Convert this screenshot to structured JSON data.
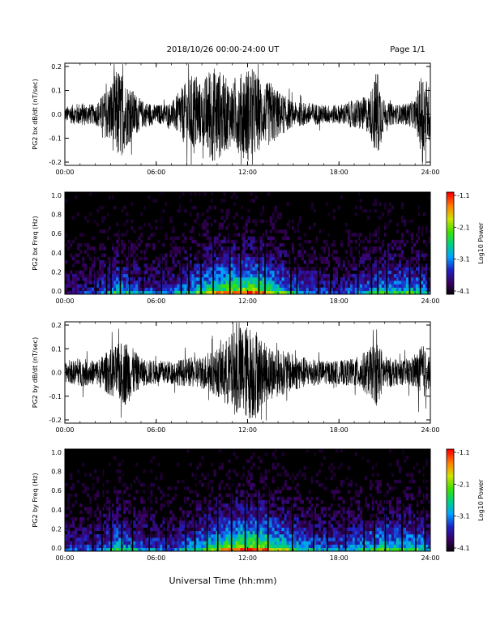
{
  "header": {
    "title": "2018/10/26  00:00-24:00 UT",
    "page": "Page 1/1"
  },
  "footer": {
    "xlabel": "Universal Time (hh:mm)"
  },
  "colors": {
    "trace": "#000000",
    "background": "#ffffff"
  },
  "colorbar": {
    "label": "Log10 Power",
    "ticks": [
      "-1.1",
      "-2.1",
      "-3.1",
      "-4.1"
    ],
    "range": [
      -4.1,
      -1.1
    ],
    "colormap": [
      "#000000",
      "#3a0060",
      "#2020c0",
      "#00a0ff",
      "#00d080",
      "#40e000",
      "#d0e000",
      "#ff8000",
      "#ff0000"
    ]
  },
  "chart_data": [
    {
      "type": "line",
      "name": "bx_waveform",
      "ylabel": "PG2 bx dB/dt (nT/sec)",
      "ylim": [
        -0.2,
        0.2
      ],
      "yticks": [
        "0.2",
        "0.1",
        "0.0",
        "-0.1",
        "-0.2"
      ],
      "xlim_hours": [
        0,
        24
      ],
      "xticks": [
        "00:00",
        "06:00",
        "12:00",
        "18:00",
        "24:00"
      ],
      "envelope": {
        "hours": [
          0,
          1,
          2,
          3,
          3.5,
          4,
          5,
          6,
          7,
          8,
          8.5,
          9,
          9.5,
          10,
          10.5,
          11,
          11.5,
          12,
          12.5,
          13,
          13.5,
          14,
          15,
          16,
          17,
          18,
          19,
          20,
          20.5,
          21,
          22,
          23,
          23.5,
          24
        ],
        "amplitude": [
          0.03,
          0.05,
          0.04,
          0.13,
          0.2,
          0.14,
          0.06,
          0.04,
          0.05,
          0.14,
          0.18,
          0.12,
          0.2,
          0.2,
          0.16,
          0.13,
          0.17,
          0.2,
          0.19,
          0.12,
          0.14,
          0.1,
          0.05,
          0.05,
          0.04,
          0.04,
          0.06,
          0.08,
          0.2,
          0.05,
          0.04,
          0.06,
          0.2,
          0.1
        ]
      }
    },
    {
      "type": "heatmap",
      "name": "bx_spectrogram",
      "ylabel": "PG2 bx Freq (Hz)",
      "ylim": [
        0.0,
        1.0
      ],
      "yticks": [
        "1.0",
        "0.8",
        "0.6",
        "0.4",
        "0.2",
        "0.0"
      ],
      "xlim_hours": [
        0,
        24
      ],
      "xticks": [
        "00:00",
        "06:00",
        "12:00",
        "18:00",
        "24:00"
      ],
      "zlim": [
        -4.1,
        -1.1
      ],
      "activity": {
        "hours": [
          0,
          2,
          3.5,
          5,
          7,
          8.5,
          10,
          11,
          12,
          13,
          14,
          16,
          18,
          20,
          21,
          23.5,
          24
        ],
        "level": [
          0.25,
          0.3,
          0.55,
          0.35,
          0.35,
          0.55,
          0.75,
          0.8,
          0.85,
          0.8,
          0.6,
          0.35,
          0.3,
          0.45,
          0.55,
          0.5,
          0.3
        ]
      },
      "gap_hours": [
        2.0,
        2.7,
        3.0,
        3.6,
        4.2,
        5.1,
        6.3,
        7.6,
        8.1,
        8.9,
        9.7,
        10.8,
        11.5,
        12.7,
        13.1,
        14.8,
        15.2,
        16.6,
        17.4,
        19.2,
        20.1,
        20.5,
        21.1,
        22.6,
        23.3,
        23.8
      ]
    },
    {
      "type": "line",
      "name": "by_waveform",
      "ylabel": "PG2 by dB/dt (nT/sec)",
      "ylim": [
        -0.2,
        0.2
      ],
      "yticks": [
        "0.2",
        "0.1",
        "0.0",
        "-0.1",
        "-0.2"
      ],
      "xlim_hours": [
        0,
        24
      ],
      "xticks": [
        "00:00",
        "06:00",
        "12:00",
        "18:00",
        "24:00"
      ],
      "envelope": {
        "hours": [
          0,
          1,
          2,
          3,
          3.5,
          4,
          5,
          6,
          7,
          8,
          9,
          10,
          11,
          11.5,
          12,
          12.5,
          13,
          14,
          15,
          16,
          17,
          18,
          19,
          20,
          20.5,
          21,
          22,
          23,
          23.5,
          24
        ],
        "amplitude": [
          0.04,
          0.06,
          0.05,
          0.1,
          0.12,
          0.14,
          0.06,
          0.05,
          0.05,
          0.06,
          0.07,
          0.1,
          0.17,
          0.2,
          0.2,
          0.2,
          0.13,
          0.1,
          0.08,
          0.06,
          0.05,
          0.05,
          0.06,
          0.1,
          0.14,
          0.07,
          0.05,
          0.07,
          0.12,
          0.06
        ]
      }
    },
    {
      "type": "heatmap",
      "name": "by_spectrogram",
      "ylabel": "PG2 by Freq (Hz)",
      "ylim": [
        0.0,
        1.0
      ],
      "yticks": [
        "1.0",
        "0.8",
        "0.6",
        "0.4",
        "0.2",
        "0.0"
      ],
      "xlim_hours": [
        0,
        24
      ],
      "xticks": [
        "00:00",
        "06:00",
        "12:00",
        "18:00",
        "24:00"
      ],
      "zlim": [
        -4.1,
        -1.1
      ],
      "activity": {
        "hours": [
          0,
          2,
          3.5,
          5,
          7,
          8.5,
          10,
          11,
          12,
          13,
          14,
          16,
          18,
          20,
          21,
          23.5,
          24
        ],
        "level": [
          0.3,
          0.35,
          0.55,
          0.4,
          0.35,
          0.5,
          0.7,
          0.8,
          0.85,
          0.85,
          0.7,
          0.45,
          0.4,
          0.55,
          0.6,
          0.55,
          0.35
        ]
      },
      "gap_hours": [
        1.8,
        2.4,
        3.0,
        3.7,
        4.4,
        5.5,
        6.6,
        7.9,
        8.5,
        9.3,
        10.0,
        10.9,
        11.8,
        12.6,
        13.3,
        14.9,
        16.3,
        17.2,
        18.4,
        19.6,
        20.3,
        21.0,
        22.1,
        23.0,
        23.6
      ]
    }
  ]
}
